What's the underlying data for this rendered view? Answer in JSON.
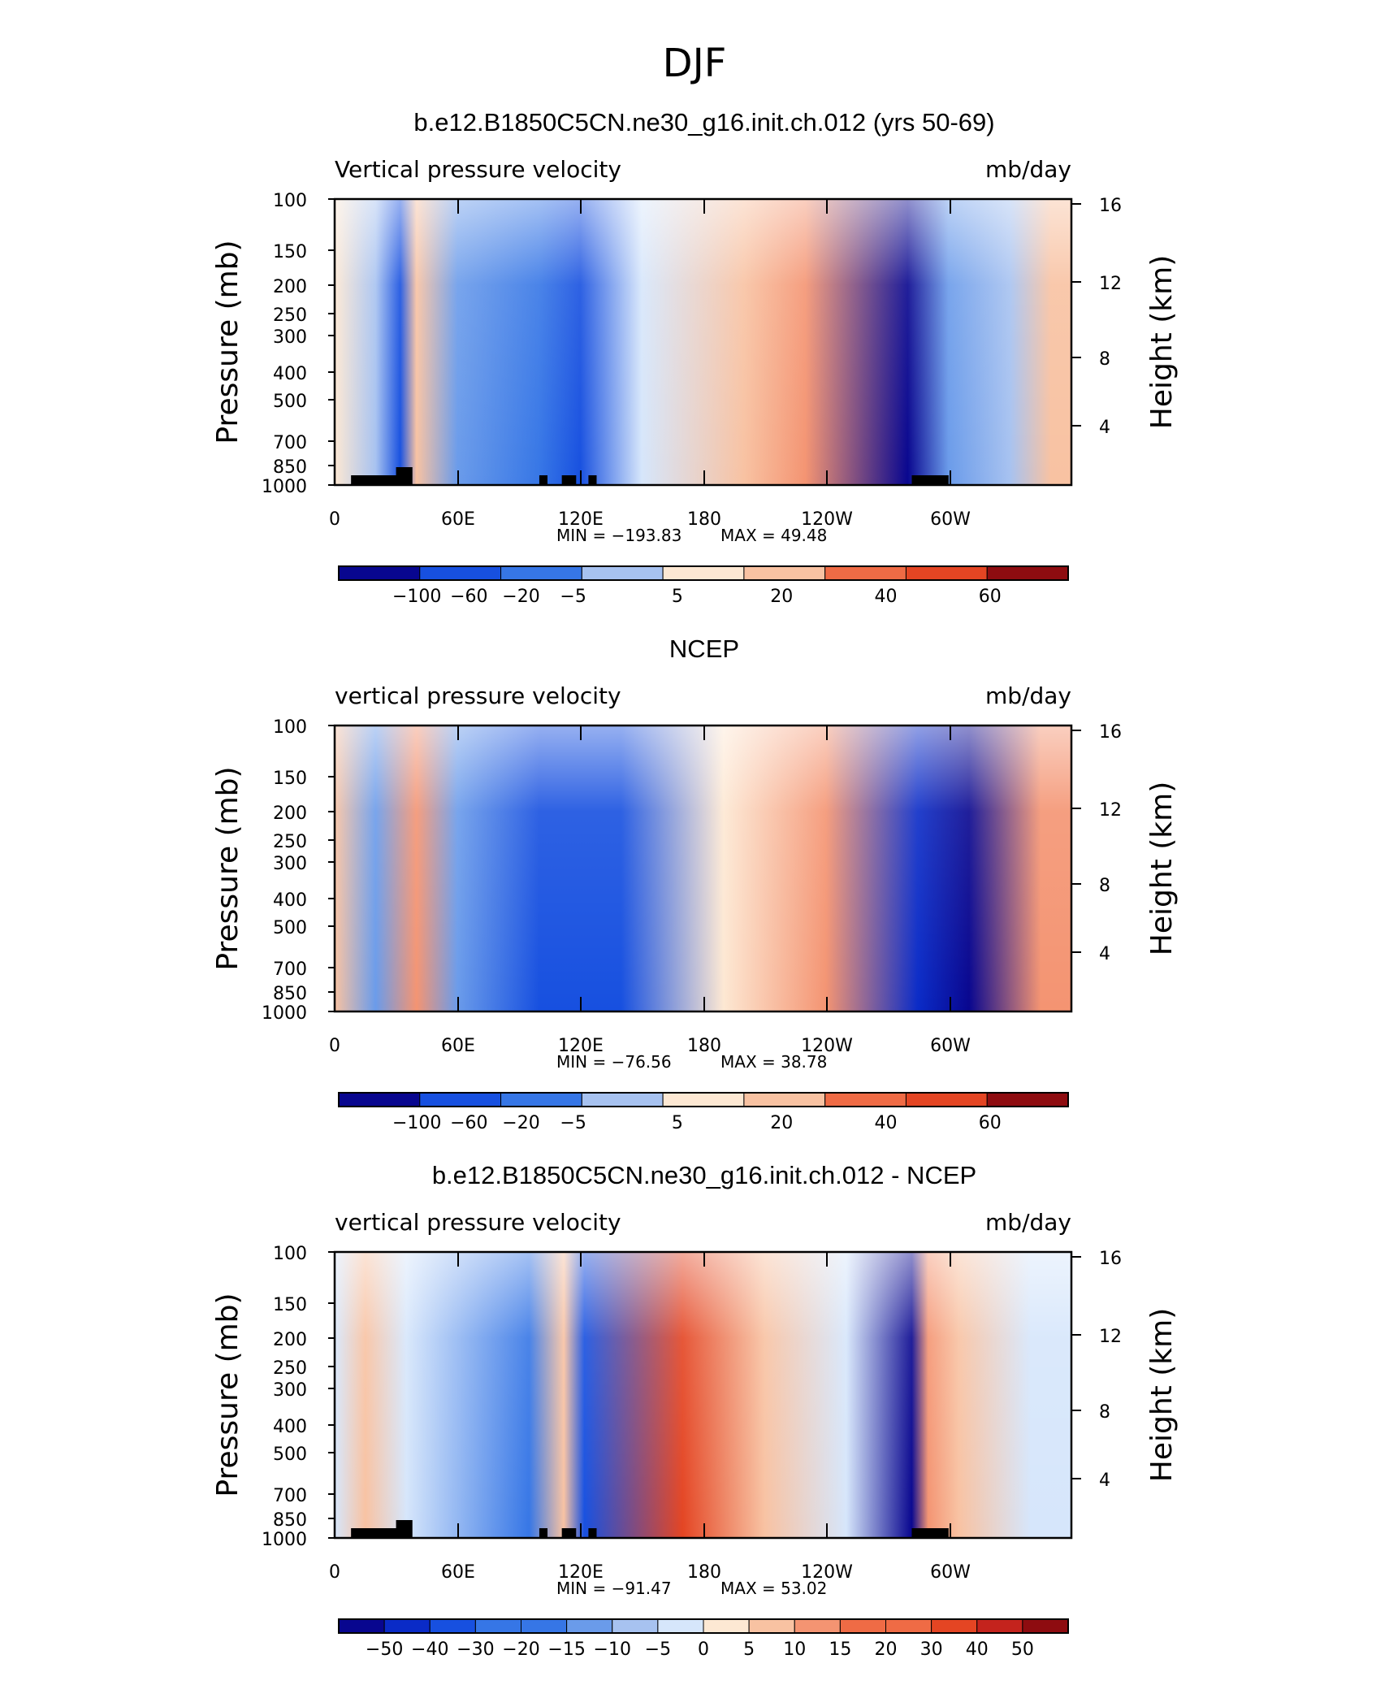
{
  "page_title": "DJF",
  "colors": {
    "neg": [
      "#08068f",
      "#0a2bc7",
      "#1750e0",
      "#3676e6",
      "#6a9bea",
      "#a7c2f0",
      "#d6e6fb"
    ],
    "pos": [
      "#fde8d3",
      "#f8c2a2",
      "#f49472",
      "#ef6b45",
      "#e44523",
      "#c4231d",
      "#8e0c10"
    ],
    "land": "#000000"
  },
  "chart_data": [
    {
      "type": "heatmap",
      "title": "b.e12.B1850C5CN.ne30_g16.init.ch.012 (yrs 50-69)",
      "left_label": "Vertical pressure velocity",
      "right_label": "mb/day",
      "ylabel": "Pressure (mb)",
      "y2label": "Height (km)",
      "y_ticks": [
        "100",
        "150",
        "200",
        "250",
        "300",
        "400",
        "500",
        "700",
        "850",
        "1000"
      ],
      "y2_ticks": [
        "16",
        "12",
        "8",
        "4"
      ],
      "x_ticks": [
        "0",
        "60E",
        "120E",
        "180",
        "120W",
        "60W"
      ],
      "stats": {
        "min_label": "MIN =",
        "min": "−193.83",
        "max_label": "MAX =",
        "max": "49.48"
      },
      "colorbar_labels": [
        "−100",
        "−60",
        "−20",
        "−5",
        "5",
        "20",
        "40",
        "60"
      ],
      "field": [
        {
          "lon": 0,
          "value": 10
        },
        {
          "lon": 20,
          "value": -30
        },
        {
          "lon": 32,
          "value": -80
        },
        {
          "lon": 40,
          "value": 30
        },
        {
          "lon": 60,
          "value": -40
        },
        {
          "lon": 100,
          "value": -60
        },
        {
          "lon": 120,
          "value": -70
        },
        {
          "lon": 150,
          "value": -10
        },
        {
          "lon": 200,
          "value": 30
        },
        {
          "lon": 230,
          "value": 40
        },
        {
          "lon": 280,
          "value": -120
        },
        {
          "lon": 300,
          "value": -50
        },
        {
          "lon": 330,
          "value": -20
        },
        {
          "lon": 350,
          "value": 20
        }
      ]
    },
    {
      "type": "heatmap",
      "title": "NCEP",
      "left_label": "vertical pressure velocity",
      "right_label": "mb/day",
      "ylabel": "Pressure (mb)",
      "y2label": "Height (km)",
      "y_ticks": [
        "100",
        "150",
        "200",
        "250",
        "300",
        "400",
        "500",
        "700",
        "850",
        "1000"
      ],
      "y2_ticks": [
        "16",
        "12",
        "8",
        "4"
      ],
      "x_ticks": [
        "0",
        "60E",
        "120E",
        "180",
        "120W",
        "60W"
      ],
      "stats": {
        "min_label": "MIN =",
        "min": "−76.56",
        "max_label": "MAX =",
        "max": "38.78"
      },
      "colorbar_labels": [
        "−100",
        "−60",
        "−20",
        "−5",
        "5",
        "20",
        "40",
        "60"
      ],
      "field": [
        {
          "lon": 0,
          "value": 10
        },
        {
          "lon": 20,
          "value": -20
        },
        {
          "lon": 40,
          "value": 20
        },
        {
          "lon": 60,
          "value": -20
        },
        {
          "lon": 100,
          "value": -40
        },
        {
          "lon": 140,
          "value": -40
        },
        {
          "lon": 190,
          "value": 5
        },
        {
          "lon": 240,
          "value": 25
        },
        {
          "lon": 285,
          "value": -50
        },
        {
          "lon": 310,
          "value": -60
        },
        {
          "lon": 345,
          "value": 20
        }
      ]
    },
    {
      "type": "heatmap",
      "title": "b.e12.B1850C5CN.ne30_g16.init.ch.012 - NCEP",
      "left_label": "vertical pressure velocity",
      "right_label": "mb/day",
      "ylabel": "Pressure (mb)",
      "y2label": "Height (km)",
      "y_ticks": [
        "100",
        "150",
        "200",
        "250",
        "300",
        "400",
        "500",
        "700",
        "850",
        "1000"
      ],
      "y2_ticks": [
        "16",
        "12",
        "8",
        "4"
      ],
      "x_ticks": [
        "0",
        "60E",
        "120E",
        "180",
        "120W",
        "60W"
      ],
      "stats": {
        "min_label": "MIN =",
        "min": "−91.47",
        "max_label": "MAX =",
        "max": "53.02"
      },
      "colorbar_labels": [
        "−50",
        "−40",
        "−30",
        "−20",
        "−15",
        "−10",
        "−5",
        "0",
        "5",
        "10",
        "15",
        "20",
        "30",
        "40",
        "50"
      ],
      "field": [
        {
          "lon": 0,
          "value": -10
        },
        {
          "lon": 15,
          "value": 15
        },
        {
          "lon": 35,
          "value": -10
        },
        {
          "lon": 95,
          "value": -40
        },
        {
          "lon": 112,
          "value": 20
        },
        {
          "lon": 122,
          "value": -50
        },
        {
          "lon": 170,
          "value": 50
        },
        {
          "lon": 210,
          "value": 20
        },
        {
          "lon": 250,
          "value": -10
        },
        {
          "lon": 282,
          "value": -80
        },
        {
          "lon": 290,
          "value": 30
        },
        {
          "lon": 305,
          "value": 20
        },
        {
          "lon": 340,
          "value": -10
        }
      ]
    }
  ]
}
